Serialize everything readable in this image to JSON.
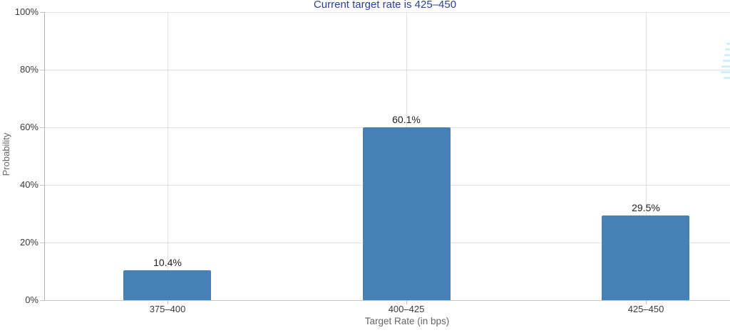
{
  "chart_data": {
    "type": "bar",
    "title": "Current target rate is 425–450",
    "categories": [
      "375–400",
      "400–425",
      "425–450"
    ],
    "values": [
      10.4,
      60.1,
      29.5
    ],
    "value_labels": [
      "10.4%",
      "60.1%",
      "29.5%"
    ],
    "xlabel": "Target Rate (in bps)",
    "ylabel": "Probability",
    "ylim": [
      0,
      100
    ],
    "ytick_interval": 20,
    "yticks": [
      {
        "value": 0,
        "label": "0%"
      },
      {
        "value": 20,
        "label": "20%"
      },
      {
        "value": 40,
        "label": "40%"
      },
      {
        "value": 60,
        "label": "60%"
      },
      {
        "value": 80,
        "label": "80%"
      },
      {
        "value": 100,
        "label": "100%"
      }
    ],
    "grid": {
      "horizontal": true,
      "vertical": true
    },
    "legend": "none",
    "colors": {
      "bar": "#4681B5",
      "title": "#2E4191",
      "gridline": "#E4E4E4",
      "axis_line": "#BDBDBD",
      "tick_label": "#3A3A3A",
      "axis_title": "#666666",
      "value_label": "#1F1F1F",
      "watermark": "#A9E2F6"
    },
    "watermark_icon": "cme-globe-logo-fragment-icon"
  }
}
